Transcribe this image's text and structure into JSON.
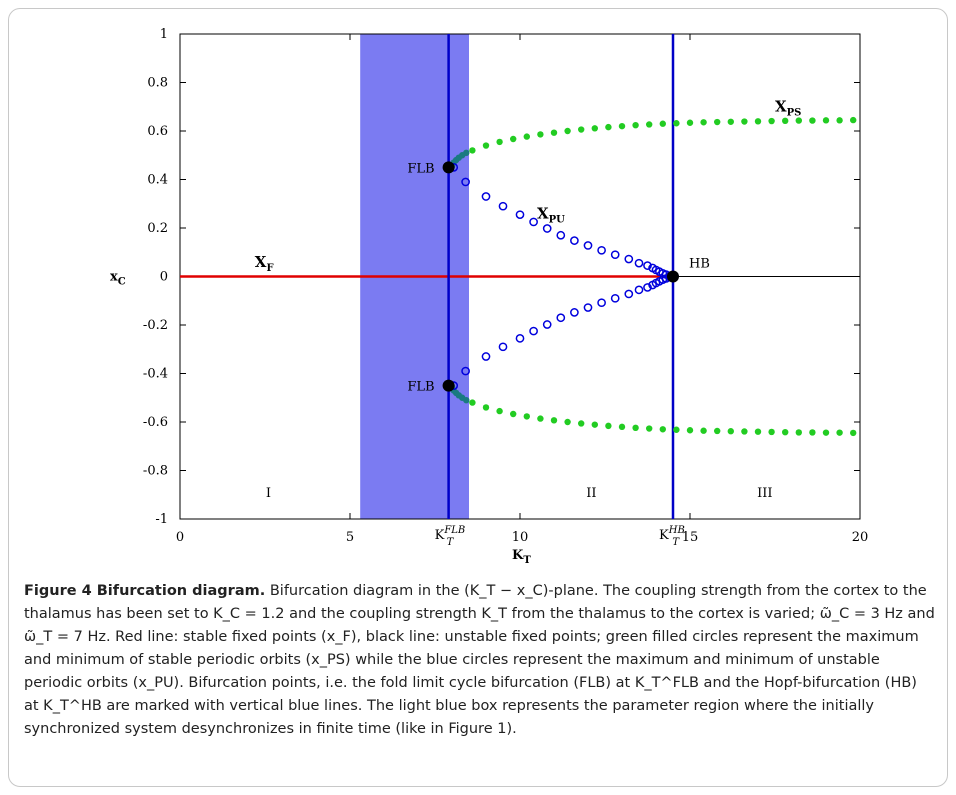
{
  "caption": {
    "title": "Figure 4 Bifurcation diagram.",
    "body": "Bifurcation diagram in the (K_T − x_C)-plane. The coupling strength from the cortex to the thalamus has been set to K_C = 1.2 and the coupling strength K_T from the thalamus to the cortex is varied; ω̃_C = 3 Hz and ω̃_T = 7 Hz. Red line: stable fixed points (x_F), black line: unstable fixed points; green filled circles represent the maximum and minimum of stable periodic orbits (x_PS) while the blue circles represent the maximum and minimum of unstable periodic orbits (x_PU). Bifurcation points, i.e. the fold limit cycle bifurcation (FLB) at K_T^FLB and the Hopf-bifurcation (HB) at K_T^HB are marked with vertical blue lines. The light blue box represents the parameter region where the initially synchronized system desynchronizes in finite time (like in Figure 1)."
  },
  "chart_data": {
    "type": "scatter",
    "xlabel": "K_T",
    "ylabel": "x_C",
    "xlim": [
      0,
      20
    ],
    "ylim": [
      -1,
      1
    ],
    "x_ticks": [
      "0",
      "5",
      "10",
      "15",
      "20"
    ],
    "x_tick_values": [
      0,
      5,
      10,
      15,
      20
    ],
    "y_ticks": [
      "1",
      "0.8",
      "0.6",
      "0.4",
      "0.2",
      "0",
      "-0.2",
      "-0.4",
      "-0.6",
      "-0.8",
      "-1"
    ],
    "y_tick_values": [
      1,
      0.8,
      0.6,
      0.4,
      0.2,
      0,
      -0.2,
      -0.4,
      -0.6,
      -0.8,
      -1
    ],
    "special_x_ticks": [
      {
        "label": "K_T^FLB",
        "x": 7.9
      },
      {
        "label": "K_T^HB",
        "x": 14.5
      }
    ],
    "shaded_region": {
      "x_start": 5.3,
      "x_end": 8.5,
      "color": "#7b7bf2"
    },
    "vertical_lines": [
      {
        "x": 7.9,
        "color": "#0000c8"
      },
      {
        "x": 14.5,
        "color": "#0000c8"
      }
    ],
    "region_labels": [
      {
        "text": "I",
        "x": 2.6,
        "y": -0.91
      },
      {
        "text": "II",
        "x": 12.1,
        "y": -0.91
      },
      {
        "text": "III",
        "x": 17.2,
        "y": -0.91
      }
    ],
    "series": [
      {
        "name": "x_F",
        "style": "line",
        "color": "#e00000",
        "points": [
          [
            0,
            0
          ],
          [
            14.5,
            0
          ]
        ]
      },
      {
        "style": "line",
        "color": "#000000",
        "points": [
          [
            14.5,
            0
          ],
          [
            20,
            0
          ]
        ]
      },
      {
        "name": "x_PS",
        "style": "filled-circles",
        "color": "#22cc22",
        "x": [
          8.6,
          9.0,
          9.4,
          9.8,
          10.2,
          10.6,
          11.0,
          11.4,
          11.8,
          12.2,
          12.6,
          13.0,
          13.4,
          13.8,
          14.2,
          14.6,
          15.0,
          15.4,
          15.8,
          16.2,
          16.6,
          17.0,
          17.4,
          17.8,
          18.2,
          18.6,
          19.0,
          19.4,
          19.8
        ],
        "y_upper": [
          0.52,
          0.54,
          0.555,
          0.567,
          0.577,
          0.586,
          0.593,
          0.6,
          0.606,
          0.611,
          0.616,
          0.62,
          0.624,
          0.627,
          0.63,
          0.632,
          0.634,
          0.636,
          0.637,
          0.638,
          0.639,
          0.64,
          0.641,
          0.642,
          0.643,
          0.643,
          0.644,
          0.644,
          0.645
        ]
      },
      {
        "style": "filled-circles",
        "color": "#1a7a80",
        "x": [
          8.0,
          8.05,
          8.12,
          8.2,
          8.3,
          8.42
        ],
        "y_upper": [
          0.455,
          0.47,
          0.48,
          0.49,
          0.5,
          0.51
        ]
      },
      {
        "name": "x_PU",
        "style": "open-circles",
        "color": "#0000dd",
        "x": [
          8.05,
          8.4,
          9.0,
          9.5,
          10.0,
          10.4,
          10.8,
          11.2,
          11.6,
          12.0,
          12.4,
          12.8,
          13.2,
          13.5,
          13.75,
          13.9,
          14.0,
          14.1,
          14.2,
          14.3,
          14.4
        ],
        "y_upper": [
          0.45,
          0.39,
          0.33,
          0.29,
          0.255,
          0.225,
          0.198,
          0.17,
          0.148,
          0.128,
          0.108,
          0.09,
          0.072,
          0.055,
          0.045,
          0.035,
          0.027,
          0.02,
          0.013,
          0.008,
          0.003
        ]
      }
    ],
    "points": [
      {
        "label": "FLB",
        "x": 7.9,
        "y": 0.45,
        "side": "left"
      },
      {
        "label": "FLB",
        "x": 7.9,
        "y": -0.45,
        "side": "left"
      },
      {
        "label": "HB",
        "x": 14.5,
        "y": 0,
        "side": "right"
      }
    ],
    "series_labels": [
      {
        "text": "x_F",
        "x": 2.2,
        "y": 0.04
      },
      {
        "text": "x_PU",
        "x": 10.5,
        "y": 0.24
      },
      {
        "text": "x_PS",
        "x": 17.5,
        "y": 0.68
      }
    ]
  }
}
